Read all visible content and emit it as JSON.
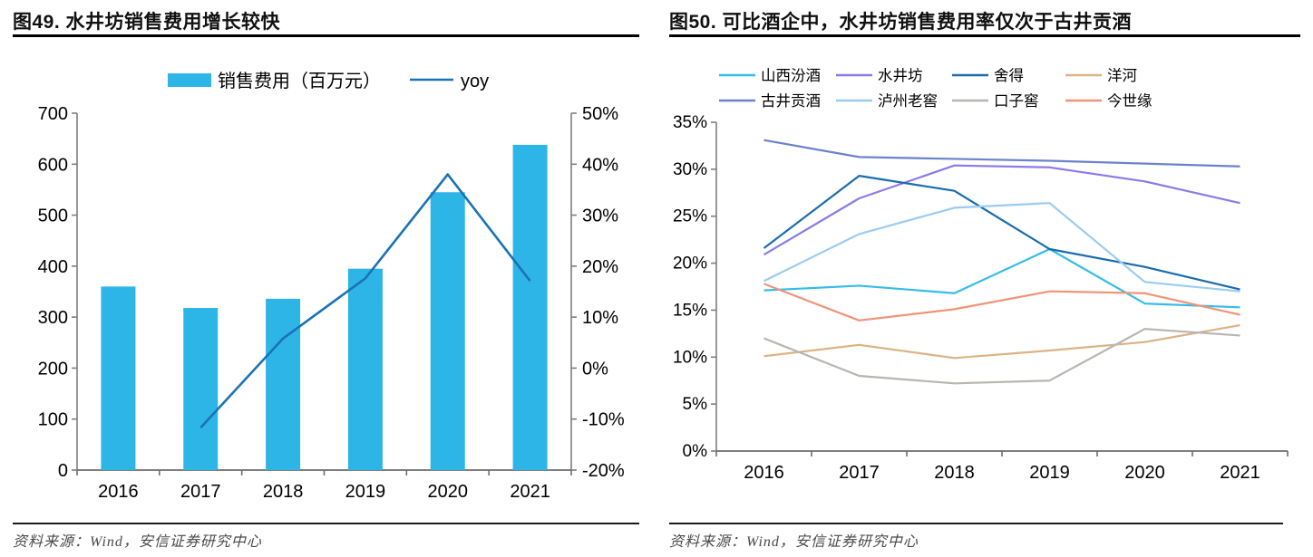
{
  "left_panel": {
    "title": "图49. 水井坊销售费用增长较快",
    "source": "资料来源：Wind，安信证券研究中心"
  },
  "right_panel": {
    "title": "图50. 可比酒企中，水井坊销售费用率仅次于古井贡酒",
    "source": "资料来源：Wind，安信证券研究中心"
  },
  "style": {
    "axis_color": "#7f7f7f",
    "bottom_axis_color": "#6e6e6e",
    "bar_color": "#2EB5E8",
    "yoy_line_color": "#1A72B6",
    "legend_text_color": "#333333",
    "title_color": "#111111",
    "source_color": "#4a4a4a"
  },
  "chart_data": [
    {
      "type": "bar",
      "subtype": "combo-bar-line",
      "title": "图49. 水井坊销售费用增长较快",
      "categories": [
        "2016",
        "2017",
        "2018",
        "2019",
        "2020",
        "2021"
      ],
      "series": [
        {
          "name": "销售费用（百万元）",
          "kind": "bar",
          "axis": "left",
          "color": "#2EB5E8",
          "values": [
            360,
            318,
            336,
            395,
            545,
            638
          ]
        },
        {
          "name": "yoy",
          "kind": "line",
          "axis": "right",
          "color": "#1A72B6",
          "values": [
            null,
            -11.7,
            5.8,
            17.6,
            38.0,
            17.1
          ]
        }
      ],
      "left_axis": {
        "min": 0,
        "max": 700,
        "step": 100,
        "ticks": [
          "700",
          "600",
          "500",
          "400",
          "300",
          "200",
          "100",
          "0"
        ]
      },
      "right_axis": {
        "min": -20,
        "max": 50,
        "step": 10,
        "ticks": [
          "50%",
          "40%",
          "30%",
          "20%",
          "10%",
          "0%",
          "-10%",
          "-20%"
        ]
      },
      "legend_position": "top",
      "grid": false
    },
    {
      "type": "line",
      "title": "图50. 可比酒企中，水井坊销售费用率仅次于古井贡酒",
      "categories": [
        "2016",
        "2017",
        "2018",
        "2019",
        "2020",
        "2021"
      ],
      "unit": "%",
      "y_axis": {
        "min": 0,
        "max": 35,
        "step": 5,
        "ticks": [
          "35%",
          "30%",
          "25%",
          "20%",
          "15%",
          "10%",
          "5%",
          "0%"
        ]
      },
      "series": [
        {
          "name": "山西汾酒",
          "color": "#35BCEC",
          "values": [
            17.1,
            17.6,
            16.8,
            21.5,
            15.7,
            15.3
          ]
        },
        {
          "name": "水井坊",
          "color": "#8A7BE8",
          "values": [
            20.9,
            26.9,
            30.4,
            30.2,
            28.7,
            26.4
          ]
        },
        {
          "name": "舍得",
          "color": "#1A6CAD",
          "values": [
            21.6,
            29.3,
            27.7,
            21.5,
            19.6,
            17.2
          ]
        },
        {
          "name": "洋河",
          "color": "#DDB285",
          "values": [
            10.1,
            11.3,
            9.9,
            10.7,
            11.6,
            13.4
          ]
        },
        {
          "name": "古井贡酒",
          "color": "#6B82CC",
          "values": [
            33.1,
            31.3,
            31.1,
            30.9,
            30.6,
            30.3
          ]
        },
        {
          "name": "泸州老窖",
          "color": "#9ACCF0",
          "values": [
            18.1,
            23.1,
            25.9,
            26.4,
            18.0,
            17.0
          ]
        },
        {
          "name": "口子窖",
          "color": "#B8B5B2",
          "values": [
            12.0,
            8.0,
            7.2,
            7.5,
            13.0,
            12.3
          ]
        },
        {
          "name": "今世缘",
          "color": "#F09478",
          "values": [
            17.8,
            13.9,
            15.1,
            17.0,
            16.8,
            14.5
          ]
        }
      ],
      "legend_position": "top",
      "legend_rows": 2,
      "grid": false
    }
  ]
}
